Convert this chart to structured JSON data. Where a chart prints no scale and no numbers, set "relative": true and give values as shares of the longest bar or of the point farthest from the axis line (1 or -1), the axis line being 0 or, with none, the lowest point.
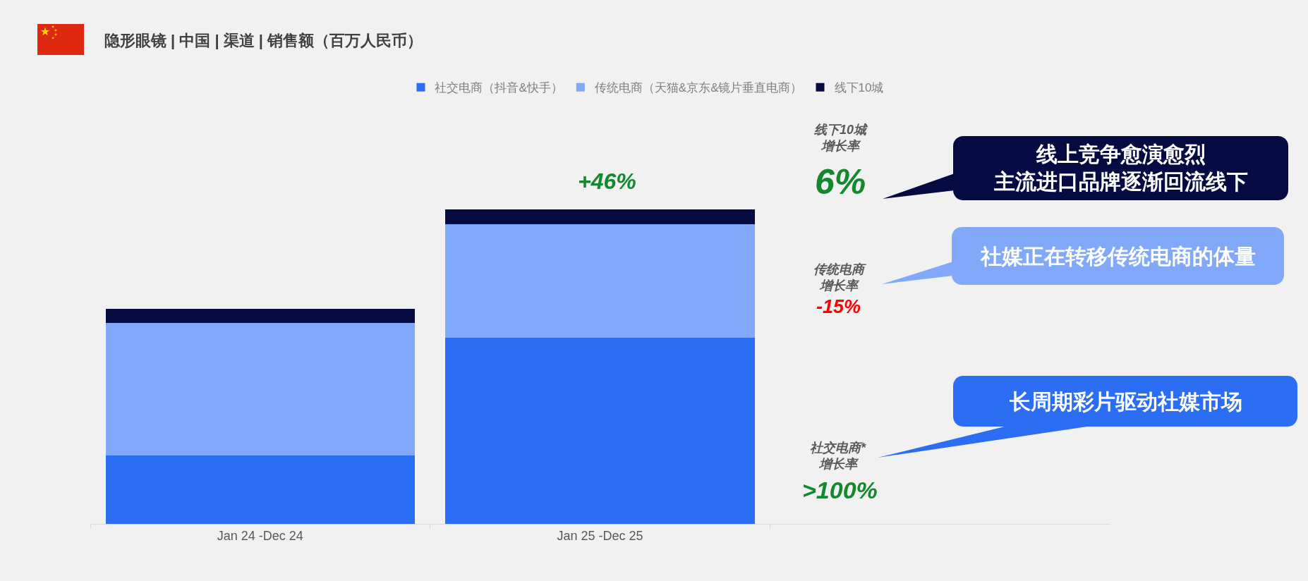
{
  "chart_data": {
    "type": "bar",
    "title": "隐形眼镜 | 中国 | 渠道 | 销售额（百万人民币）",
    "categories": [
      "Jan 24 -Dec 24",
      "Jan 25 -Dec 25",
      null
    ],
    "relative": true,
    "stacked": true,
    "legend": "top",
    "series": [
      {
        "name": "社交电商（抖音&快手）",
        "color": "#2b6ef4",
        "values": [
          0.217,
          0.593,
          null
        ]
      },
      {
        "name": "传统电商（天猫&京东&镜片垂直电商）",
        "color": "#82a8fa",
        "values": [
          0.422,
          0.359,
          null
        ]
      },
      {
        "name": "线下10城",
        "color": "#060b42",
        "values": [
          0.045,
          0.048,
          null
        ]
      }
    ],
    "annotations": [
      "+46%",
      "线下10城增长率",
      "6%",
      "线上竞争愈演愈烈主流进口品牌逐渐回流线下",
      "传统电商增长率",
      "-15%",
      "社媒正在转移传统电商的体量",
      "社交电商*增长率",
      ">100%",
      "长周期彩片驱动社媒市场"
    ]
  }
}
